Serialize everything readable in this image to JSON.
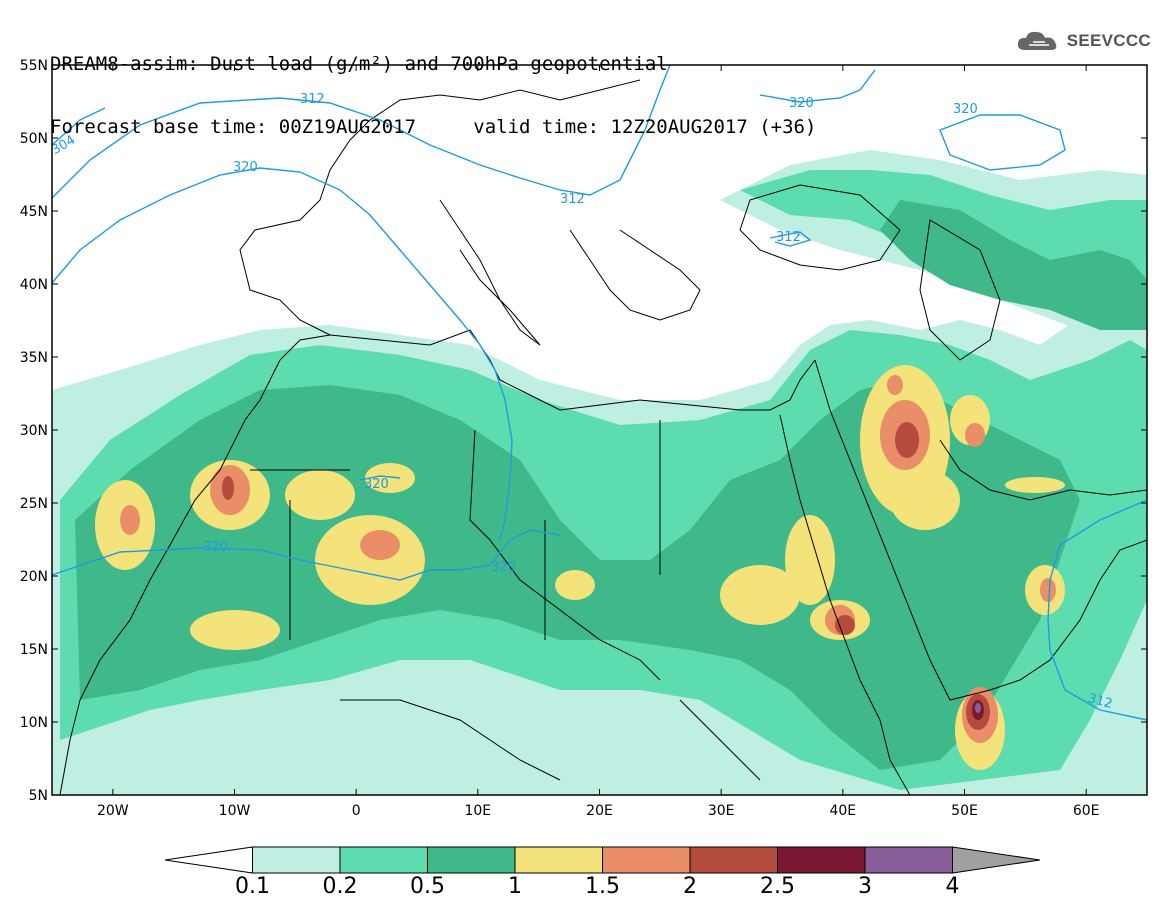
{
  "title": {
    "line1": "DREAM8-assim: Dust load (g/m²) and 700hPa geopotential",
    "line2_left": "Forecast base time: 00Z19AUG2017",
    "line2_right": "valid time: 12Z20AUG2017 (+36)"
  },
  "logo": {
    "text": "SEEVCCC",
    "icon": "cloud-icon"
  },
  "axes": {
    "lat_labels": [
      "55N",
      "50N",
      "45N",
      "40N",
      "35N",
      "30N",
      "25N",
      "20N",
      "15N",
      "10N",
      "5N"
    ],
    "lon_labels": [
      "20W",
      "10W",
      "0",
      "10E",
      "20E",
      "30E",
      "40E",
      "50E",
      "60E"
    ],
    "lat_range": [
      5,
      55
    ],
    "lon_range": [
      -25,
      65
    ]
  },
  "contour_labels": [
    "304",
    "312",
    "320",
    "320",
    "312",
    "320",
    "312",
    "320",
    "320",
    "320",
    "312"
  ],
  "colorbar": {
    "labels": [
      "0.1",
      "0.2",
      "0.5",
      "1",
      "1.5",
      "2",
      "2.5",
      "3",
      "4"
    ],
    "colors": [
      "#bfeee3",
      "#5ddcb0",
      "#3fb88a",
      "#f3e37a",
      "#e98e68",
      "#b34c3c",
      "#7a1833",
      "#8a5e9a"
    ],
    "over_color": "#a0a0a0",
    "under_color": "#ffffff"
  }
}
